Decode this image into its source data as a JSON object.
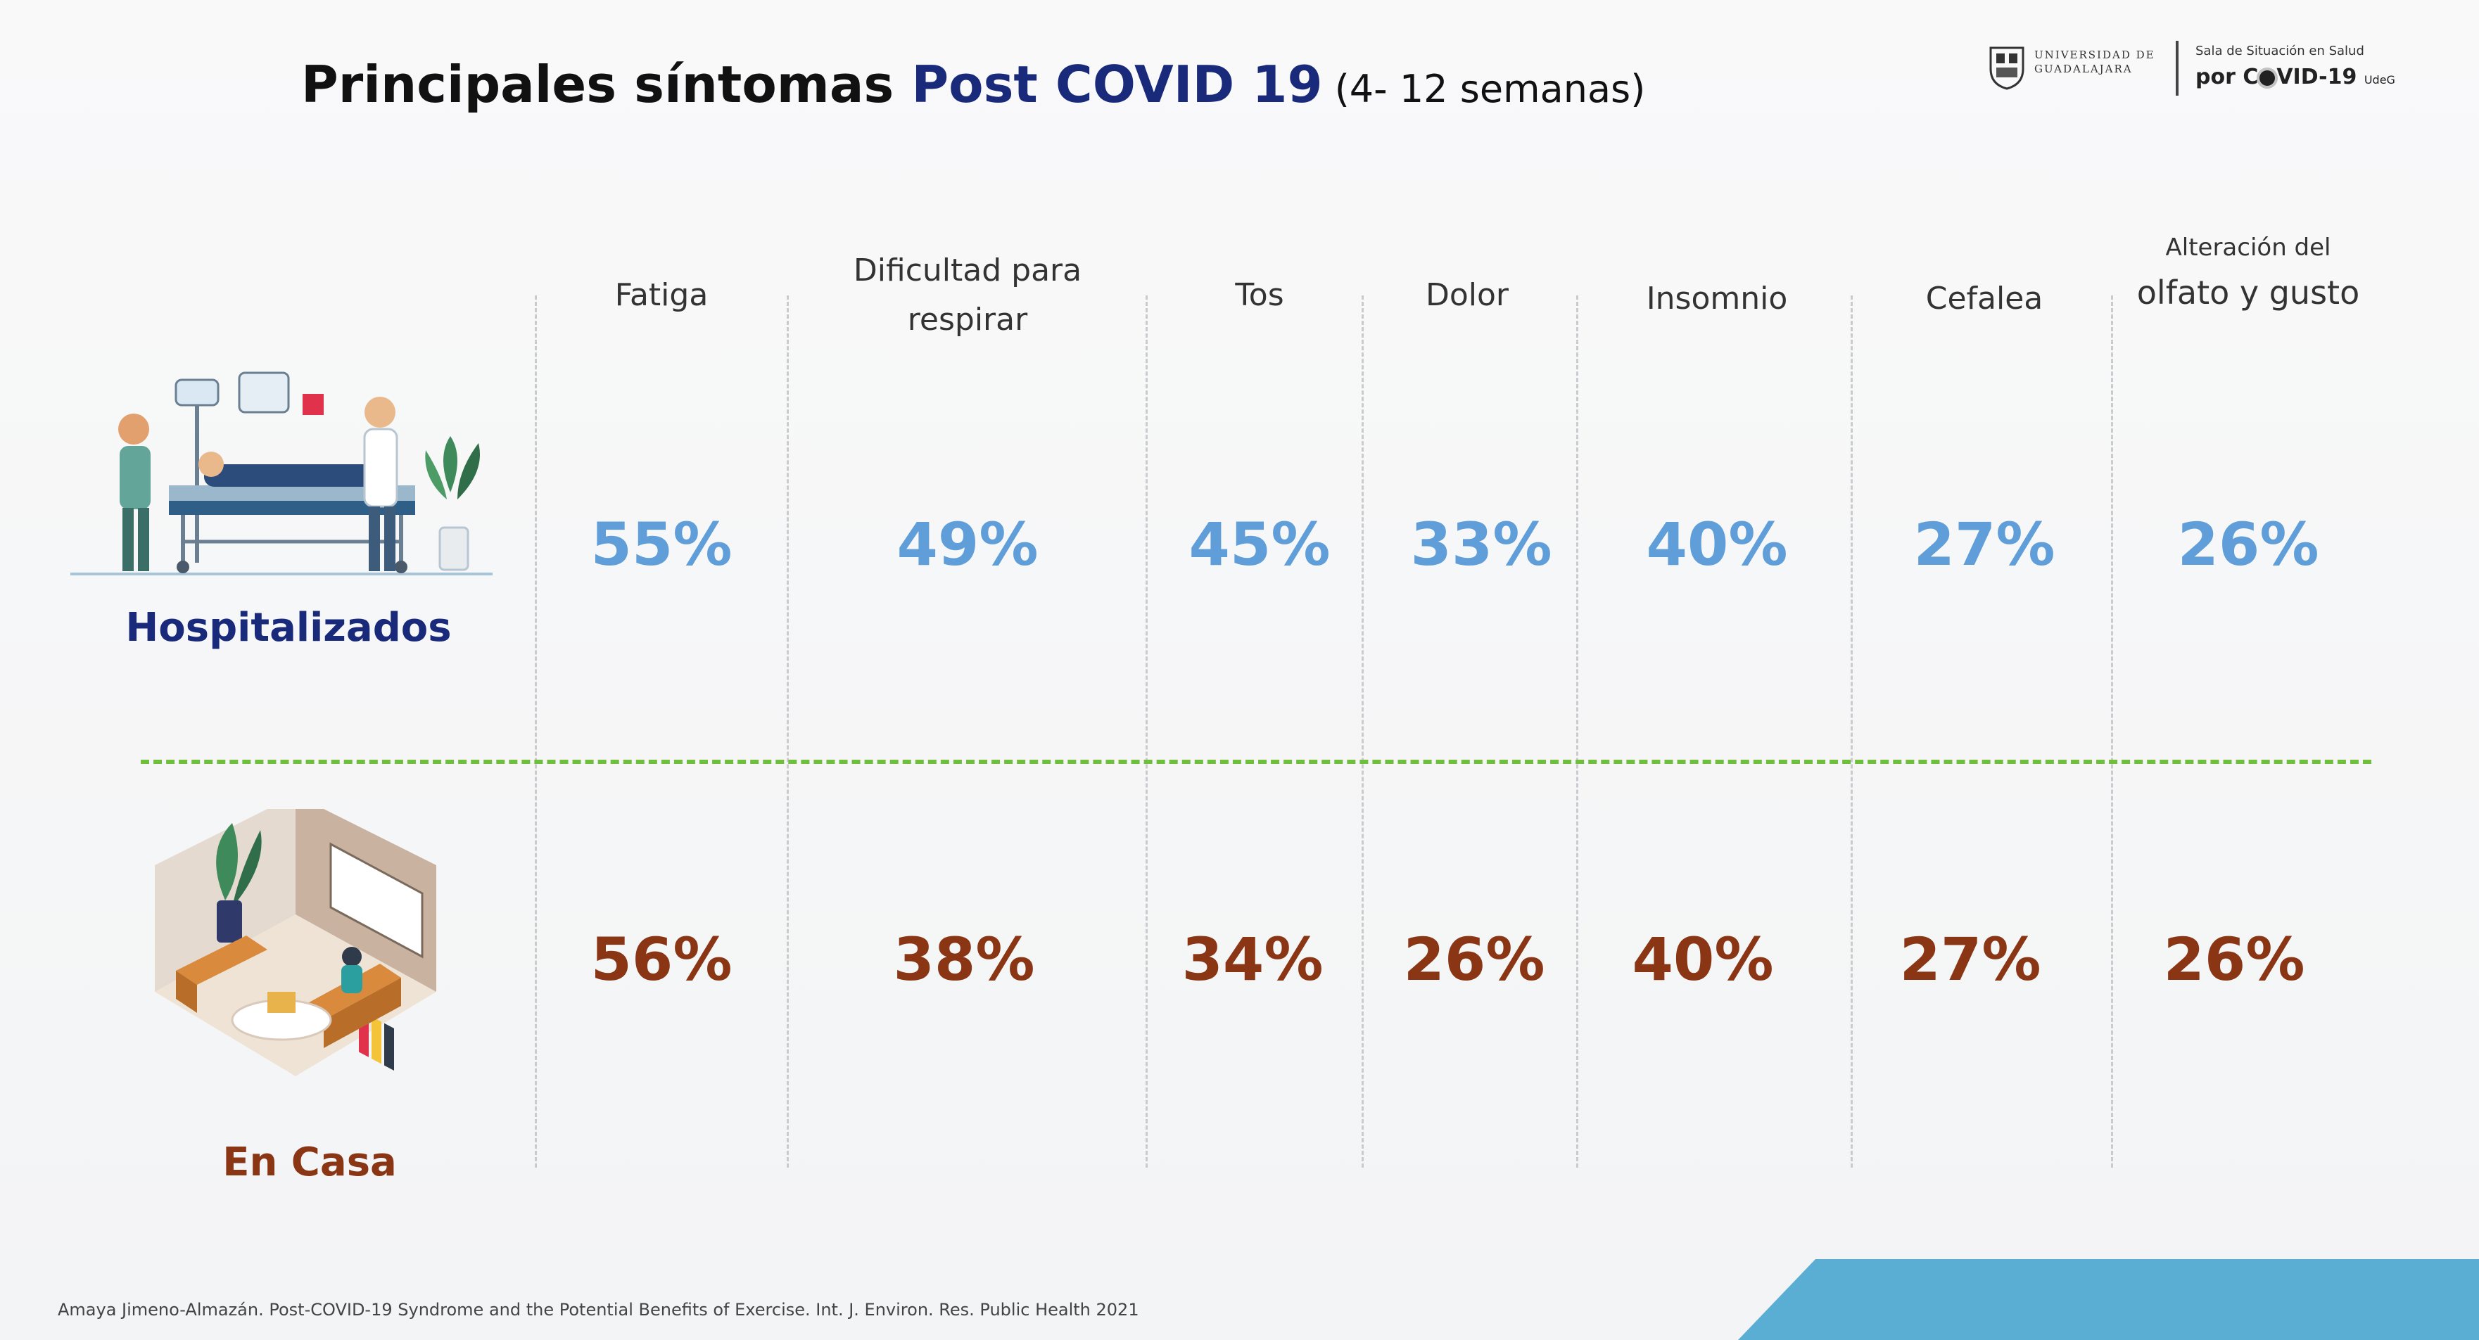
{
  "title": {
    "part1": "Principales síntomas ",
    "part2": "Post COVID 19",
    "part3": " (4- 12 semanas)"
  },
  "logos": {
    "udg_line1": "UNIVERSIDAD DE",
    "udg_line2": "GUADALAJARA",
    "sala_line1": "Sala de Situación en Salud",
    "sala_prefix": "por C",
    "sala_suffix": "VID-19",
    "sala_small": "UdeG"
  },
  "columns": [
    {
      "label_line1": "Fatiga",
      "label_line2": ""
    },
    {
      "label_line1": "Dificultad para",
      "label_line2": "respirar"
    },
    {
      "label_line1": "Tos",
      "label_line2": ""
    },
    {
      "label_line1": "Dolor",
      "label_line2": ""
    },
    {
      "label_line1": "Insomnio",
      "label_line2": ""
    },
    {
      "label_line1": "Cefalea",
      "label_line2": ""
    },
    {
      "label_line1": "Alteración del",
      "label_line2": "olfato y gusto"
    }
  ],
  "groups": {
    "hospitalizados": {
      "label": "Hospitalizados",
      "values": [
        "55%",
        "49%",
        "45%",
        "33%",
        "40%",
        "27%",
        "26%"
      ]
    },
    "en_casa": {
      "label": "En Casa",
      "values": [
        "56%",
        "38%",
        "34%",
        "26%",
        "40%",
        "27%",
        "26%"
      ]
    }
  },
  "footer": {
    "citation": "Amaya Jimeno-Almazán. Post-COVID-19 Syndrome and the Potential Benefits of Exercise. Int. J. Environ. Res. Public Health 2021"
  },
  "colors": {
    "title_accent": "#1a2a7a",
    "hosp_value": "#5f9ed8",
    "casa_value": "#8a3514",
    "divider": "#6fbe3c",
    "corner": "#5aaed4"
  }
}
